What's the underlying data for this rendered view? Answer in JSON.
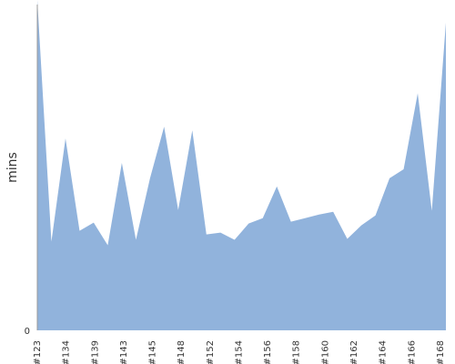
{
  "chart_data": {
    "type": "area",
    "ylabel": "mins",
    "xlabel": "",
    "title": "",
    "ylim": [
      0,
      360
    ],
    "y_tick_labels": [
      "0"
    ],
    "x_tick_labels": [
      "#123",
      "#134",
      "#139",
      "#143",
      "#145",
      "#148",
      "#152",
      "#154",
      "#156",
      "#158",
      "#160",
      "#162",
      "#164",
      "#166",
      "#168"
    ],
    "series": [
      {
        "color": "#91b3dc",
        "values": [
          365,
          98,
          212,
          110,
          119,
          94,
          185,
          100,
          168,
          225,
          133,
          221,
          106,
          108,
          100,
          118,
          124,
          159,
          120,
          124,
          128,
          131,
          101,
          116,
          127,
          168,
          178,
          262,
          132,
          340
        ]
      }
    ],
    "grid": false,
    "legend": "none"
  }
}
